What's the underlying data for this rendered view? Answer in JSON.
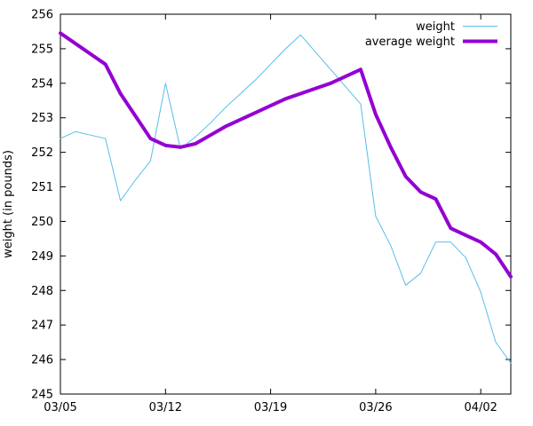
{
  "page": {
    "background": "#ffffff",
    "axis_color": "#000000",
    "text_color": "#000000"
  },
  "chart_data": {
    "type": "line",
    "title": "",
    "xlabel": "",
    "ylabel": "weight (in pounds)",
    "ylim": [
      245,
      256
    ],
    "y_ticks": [
      245,
      246,
      247,
      248,
      249,
      250,
      251,
      252,
      253,
      254,
      255,
      256
    ],
    "x_tick_labels": [
      "03/05",
      "03/12",
      "03/19",
      "03/26",
      "04/02"
    ],
    "x_tick_day_index": [
      0,
      7,
      14,
      21,
      28
    ],
    "grid": false,
    "legend_position": "top-right-inside",
    "x": [
      "03/05",
      "03/06",
      "03/07",
      "03/08",
      "03/09",
      "03/10",
      "03/11",
      "03/12",
      "03/13",
      "03/14",
      "03/15",
      "03/16",
      "03/17",
      "03/18",
      "03/19",
      "03/20",
      "03/21",
      "03/22",
      "03/23",
      "03/24",
      "03/25",
      "03/26",
      "03/27",
      "03/28",
      "03/29",
      "03/30",
      "03/31",
      "04/01",
      "04/02",
      "04/03",
      "04/04"
    ],
    "series": [
      {
        "name": "weight",
        "color": "#58bde9",
        "line_width": 1,
        "values": [
          252.4,
          252.6,
          252.5,
          252.4,
          250.6,
          251.2,
          251.75,
          254.0,
          252.1,
          252.45,
          252.85,
          253.3,
          253.7,
          254.1,
          254.55,
          255.0,
          255.4,
          254.9,
          254.4,
          253.9,
          253.4,
          250.15,
          249.3,
          248.15,
          248.5,
          249.4,
          249.4,
          248.95,
          247.95,
          246.5,
          245.9
        ]
      },
      {
        "name": "average weight",
        "color": "#9400d3",
        "line_width": 4,
        "values": [
          255.45,
          255.15,
          254.85,
          254.55,
          253.7,
          253.05,
          252.4,
          252.2,
          252.15,
          252.25,
          252.5,
          252.75,
          252.95,
          253.15,
          253.35,
          253.55,
          253.7,
          253.85,
          254.0,
          254.2,
          254.4,
          253.1,
          252.15,
          251.3,
          250.85,
          250.65,
          249.8,
          249.6,
          249.4,
          249.05,
          248.4
        ]
      }
    ]
  }
}
